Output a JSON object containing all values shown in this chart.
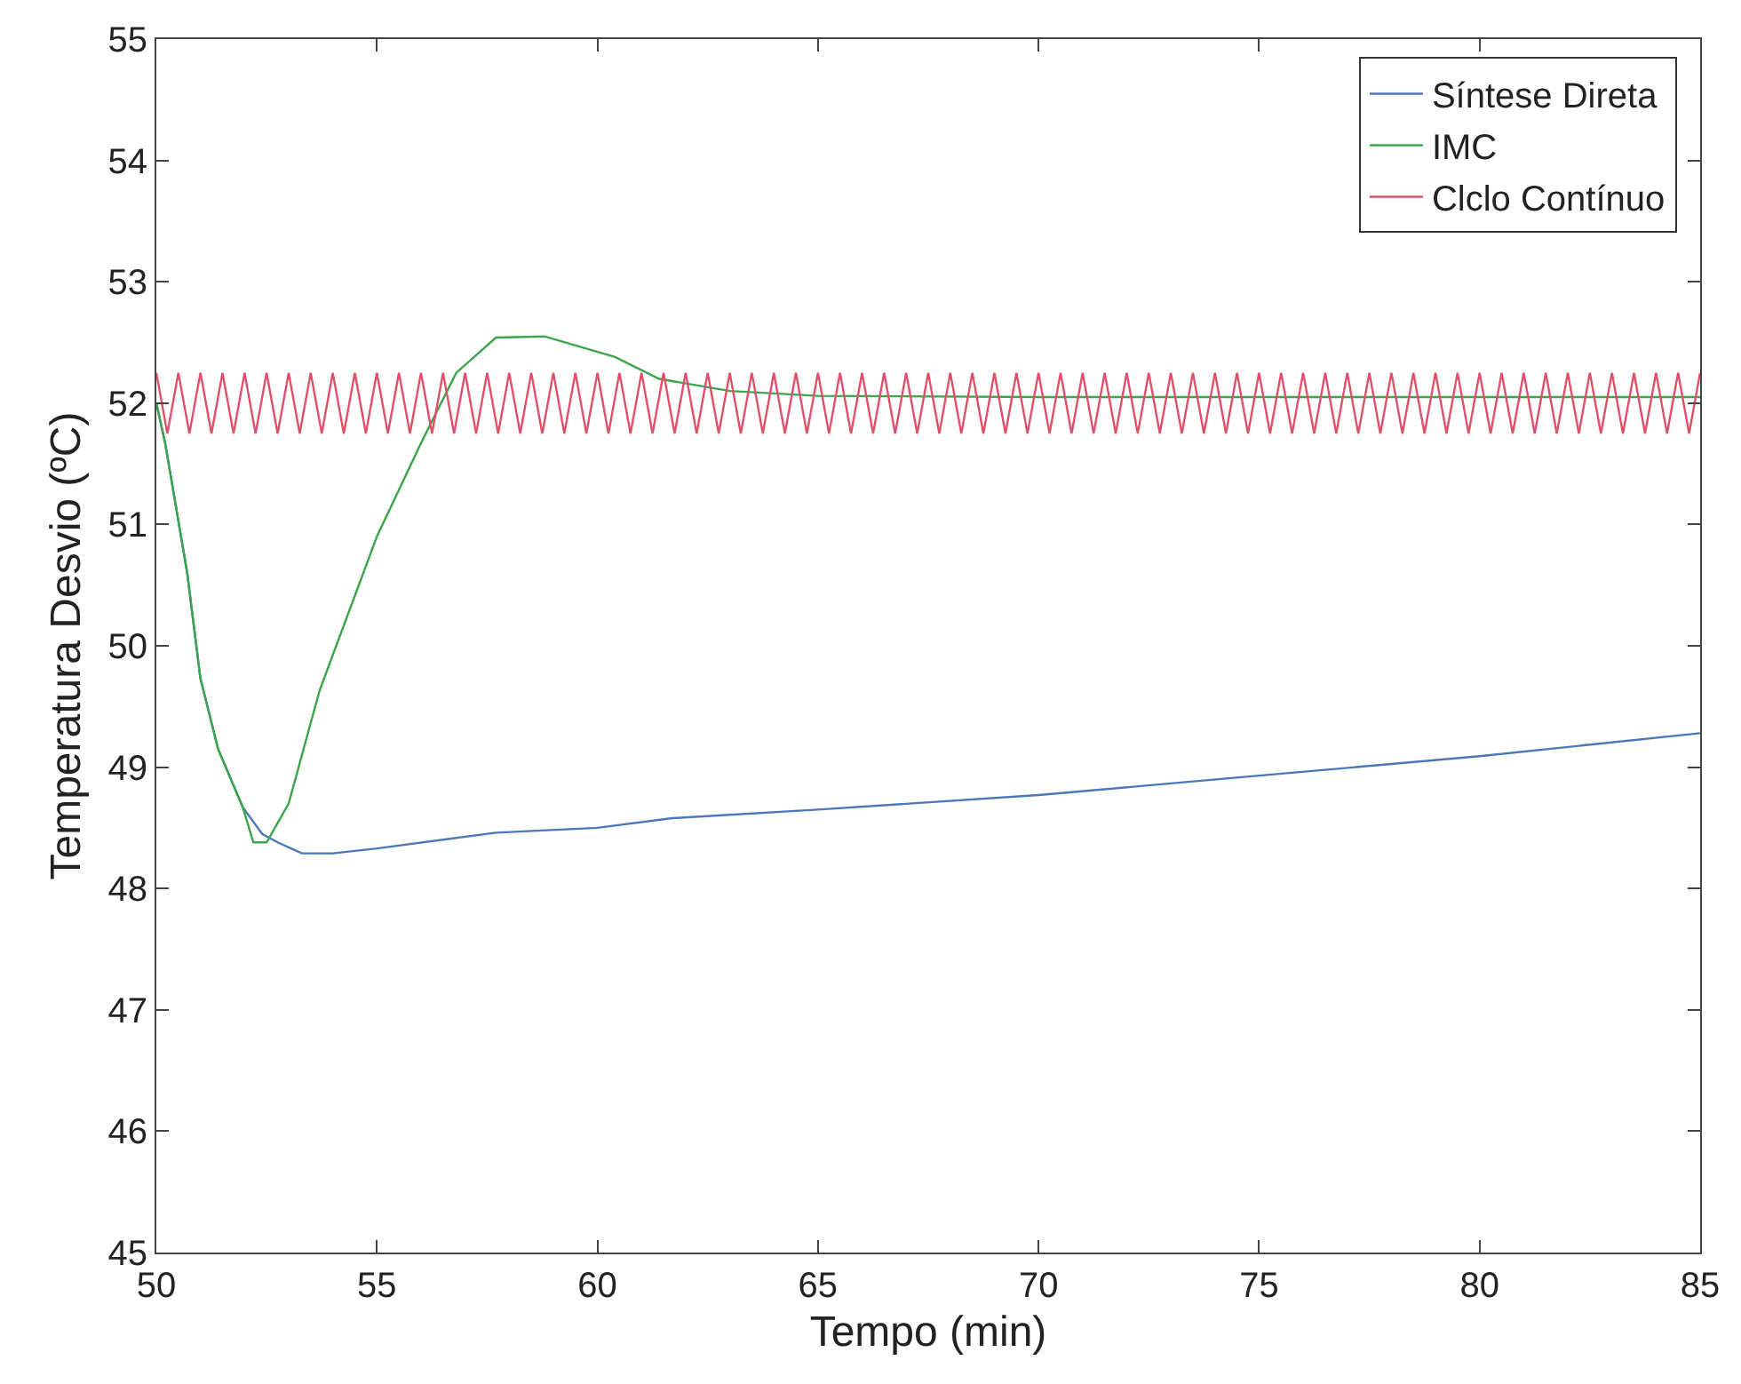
{
  "chart_data": {
    "type": "line",
    "xlabel": "Tempo (min)",
    "ylabel": "Temperatura Desvio (ºC)",
    "xlim": [
      50,
      85
    ],
    "ylim": [
      45,
      55
    ],
    "xticks": [
      50,
      55,
      60,
      65,
      70,
      75,
      80,
      85
    ],
    "yticks": [
      45,
      46,
      47,
      48,
      49,
      50,
      51,
      52,
      53,
      54,
      55
    ],
    "grid": false,
    "legend": "top right",
    "series": [
      {
        "name": "Síntese Direta",
        "color": "#4a78b8",
        "x": [
          50,
          50.2,
          50.7,
          51,
          51.4,
          51.96,
          52.4,
          52.75,
          53.3,
          54,
          55,
          57.7,
          60,
          61.7,
          65,
          70,
          75,
          80,
          85
        ],
        "values": [
          52,
          51.67,
          50.6,
          49.73,
          49.15,
          48.67,
          48.45,
          48.38,
          48.29,
          48.29,
          48.33,
          48.46,
          48.5,
          48.58,
          48.65,
          48.77,
          48.93,
          49.09,
          49.28
        ]
      },
      {
        "name": "IMC",
        "color": "#3aa64a",
        "x": [
          50,
          50.2,
          50.7,
          51,
          51.4,
          51.96,
          52.2,
          52.5,
          53,
          53.7,
          55,
          56,
          56.8,
          57.7,
          58.8,
          60.4,
          61.4,
          63,
          65,
          70,
          75,
          80,
          85
        ],
        "values": [
          52,
          51.67,
          50.6,
          49.73,
          49.15,
          48.67,
          48.38,
          48.38,
          48.7,
          49.63,
          50.9,
          51.67,
          52.25,
          52.54,
          52.55,
          52.38,
          52.2,
          52.1,
          52.06,
          52.05,
          52.05,
          52.05,
          52.05
        ]
      },
      {
        "name": "Clclo Contínuo",
        "color": "#e0506a",
        "x": [
          50,
          50.25,
          50.5,
          50.75,
          51,
          51.25,
          51.5,
          51.75,
          52,
          52.25,
          52.5,
          52.75,
          53,
          53.25,
          53.5,
          53.75,
          54,
          54.25,
          54.5,
          54.75,
          55,
          55.25,
          55.5,
          55.75,
          56,
          56.25,
          56.5,
          56.75,
          57,
          57.25,
          57.5,
          57.75,
          58,
          58.25,
          58.5,
          58.75,
          59,
          59.25,
          59.5,
          59.75,
          60,
          60.25,
          60.5,
          60.75,
          61,
          61.25,
          61.5,
          61.75,
          62,
          62.25,
          62.5,
          62.75,
          63,
          63.25,
          63.5,
          63.75,
          64,
          64.25,
          64.5,
          64.75,
          65,
          65.25,
          65.5,
          65.75,
          66,
          66.25,
          66.5,
          66.75,
          67,
          67.25,
          67.5,
          67.75,
          68,
          68.25,
          68.5,
          68.75,
          69,
          69.25,
          69.5,
          69.75,
          70,
          70.25,
          70.5,
          70.75,
          71,
          71.25,
          71.5,
          71.75,
          72,
          72.25,
          72.5,
          72.75,
          73,
          73.25,
          73.5,
          73.75,
          74,
          74.25,
          74.5,
          74.75,
          75,
          75.25,
          75.5,
          75.75,
          76,
          76.25,
          76.5,
          76.75,
          77,
          77.25,
          77.5,
          77.75,
          78,
          78.25,
          78.5,
          78.75,
          79,
          79.25,
          79.5,
          79.75,
          80,
          80.25,
          80.5,
          80.75,
          81,
          81.25,
          81.5,
          81.75,
          82,
          82.25,
          82.5,
          82.75,
          83,
          83.25,
          83.5,
          83.75,
          84,
          84.25,
          84.5,
          84.75,
          85
        ],
        "values": [
          52.25,
          51.75,
          52.25,
          51.75,
          52.25,
          51.75,
          52.25,
          51.75,
          52.25,
          51.75,
          52.25,
          51.75,
          52.25,
          51.75,
          52.25,
          51.75,
          52.25,
          51.75,
          52.25,
          51.75,
          52.25,
          51.75,
          52.25,
          51.75,
          52.25,
          51.75,
          52.25,
          51.75,
          52.25,
          51.75,
          52.25,
          51.75,
          52.25,
          51.75,
          52.25,
          51.75,
          52.25,
          51.75,
          52.25,
          51.75,
          52.25,
          51.75,
          52.25,
          51.75,
          52.25,
          51.75,
          52.25,
          51.75,
          52.25,
          51.75,
          52.25,
          51.75,
          52.25,
          51.75,
          52.25,
          51.75,
          52.25,
          51.75,
          52.25,
          51.75,
          52.25,
          51.75,
          52.25,
          51.75,
          52.25,
          51.75,
          52.25,
          51.75,
          52.25,
          51.75,
          52.25,
          51.75,
          52.25,
          51.75,
          52.25,
          51.75,
          52.25,
          51.75,
          52.25,
          51.75,
          52.25,
          51.75,
          52.25,
          51.75,
          52.25,
          51.75,
          52.25,
          51.75,
          52.25,
          51.75,
          52.25,
          51.75,
          52.25,
          51.75,
          52.25,
          51.75,
          52.25,
          51.75,
          52.25,
          51.75,
          52.25,
          51.75,
          52.25,
          51.75,
          52.25,
          51.75,
          52.25,
          51.75,
          52.25,
          51.75,
          52.25,
          51.75,
          52.25,
          51.75,
          52.25,
          51.75,
          52.25,
          51.75,
          52.25,
          51.75,
          52.25,
          51.75,
          52.25,
          51.75,
          52.25,
          51.75,
          52.25,
          51.75,
          52.25,
          51.75,
          52.25,
          51.75,
          52.25,
          51.75,
          52.25,
          51.75,
          52.25,
          51.75,
          52.25,
          51.75,
          52.25
        ]
      }
    ]
  }
}
